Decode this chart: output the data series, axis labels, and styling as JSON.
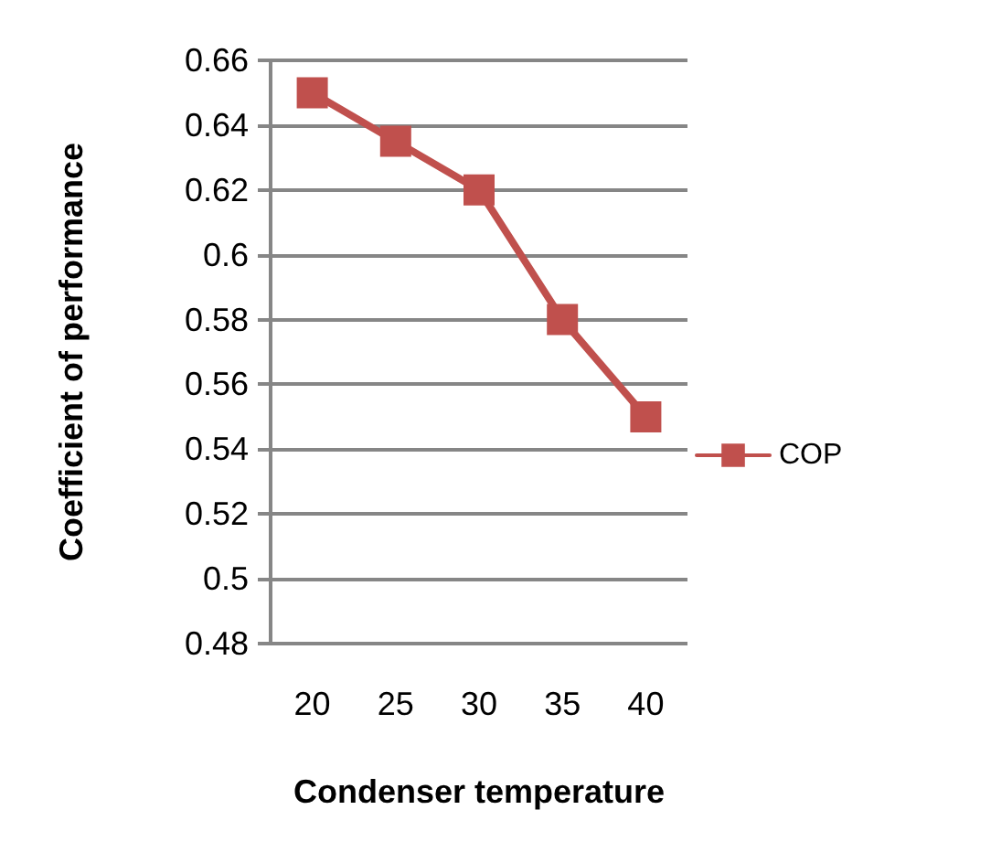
{
  "chart_data": {
    "type": "line",
    "xlabel": "Condenser temperature",
    "ylabel": "Coefficient of performance",
    "categories": [
      "20",
      "25",
      "30",
      "35",
      "40"
    ],
    "series": [
      {
        "name": "COP",
        "color": "#c0504d",
        "values": [
          0.65,
          0.635,
          0.62,
          0.58,
          0.55
        ]
      }
    ],
    "ylim": [
      0.48,
      0.66
    ],
    "yticks": [
      0.48,
      0.5,
      0.52,
      0.54,
      0.56,
      0.58,
      0.6,
      0.62,
      0.64,
      0.66
    ],
    "grid": "y",
    "legend": "right",
    "marker": "square",
    "line_style": "solid"
  }
}
